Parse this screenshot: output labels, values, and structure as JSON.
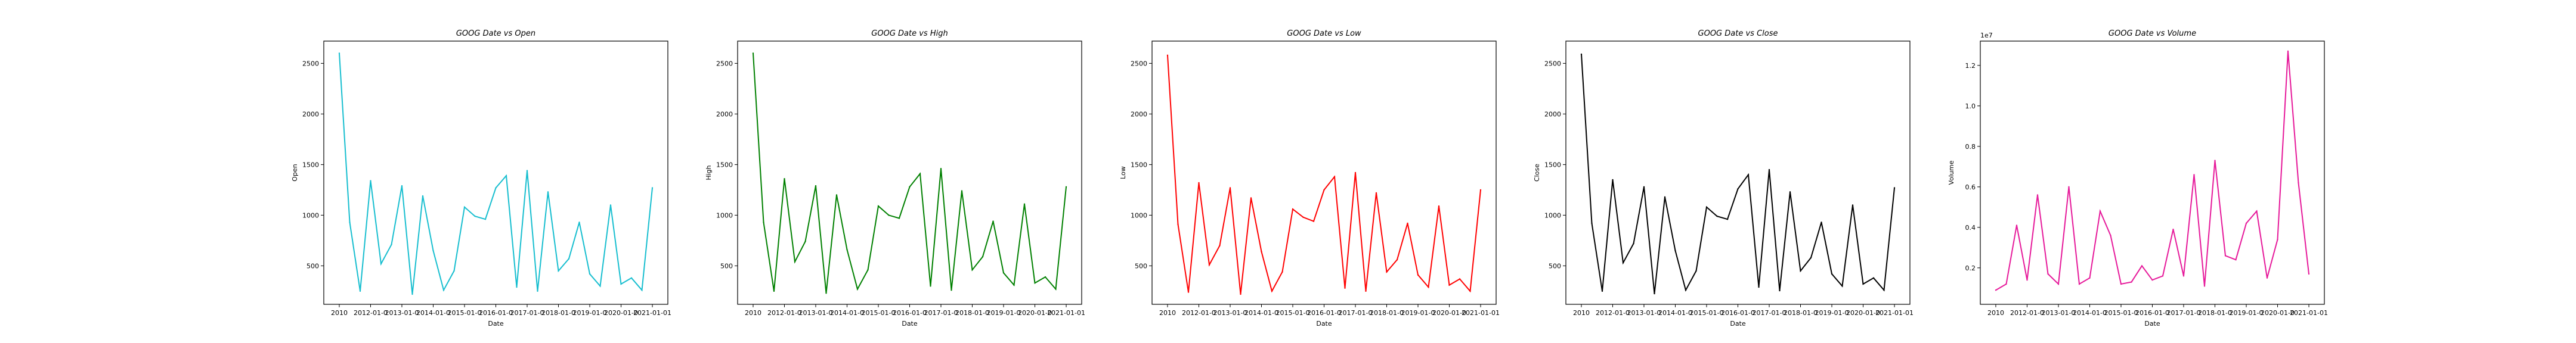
{
  "chart_data": [
    {
      "type": "line",
      "title": "GOOG Date vs Open",
      "xlabel": "Date",
      "ylabel": "Open",
      "color": "#17becf",
      "x_tick_labels": [
        "2010",
        "2012-01-0",
        "2013-01-0",
        "2014-01-0",
        "2015-01-0",
        "2016-01-0",
        "2017-01-0",
        "2018-01-0",
        "2019-01-0",
        "2020-01-0",
        "2021-01-01"
      ],
      "y_ticks": [
        "500",
        "1000",
        "1500",
        "2000",
        "2500"
      ],
      "ylim": [
        120,
        2720
      ],
      "values": [
        2600,
        930,
        250,
        1340,
        520,
        710,
        1290,
        220,
        1190,
        650,
        260,
        450,
        1080,
        990,
        960,
        1270,
        1390,
        290,
        1440,
        250,
        1230,
        450,
        570,
        930,
        420,
        300,
        1100,
        320,
        380,
        260,
        1270
      ]
    },
    {
      "type": "line",
      "title": "GOOG Date vs High",
      "xlabel": "Date",
      "ylabel": "High",
      "color": "#008000",
      "x_tick_labels": [
        "2010",
        "2012-01-0",
        "2013-01-0",
        "2014-01-0",
        "2015-01-0",
        "2016-01-0",
        "2017-01-0",
        "2018-01-0",
        "2019-01-0",
        "2020-01-0",
        "2021-01-01"
      ],
      "y_ticks": [
        "500",
        "1000",
        "1500",
        "2000",
        "2500"
      ],
      "ylim": [
        120,
        2720
      ],
      "values": [
        2600,
        930,
        250,
        1360,
        540,
        740,
        1290,
        230,
        1200,
        660,
        270,
        460,
        1090,
        1000,
        970,
        1280,
        1410,
        300,
        1460,
        260,
        1240,
        460,
        590,
        940,
        430,
        310,
        1110,
        330,
        390,
        270,
        1280
      ]
    },
    {
      "type": "line",
      "title": "GOOG Date vs Low",
      "xlabel": "Date",
      "ylabel": "Low",
      "color": "#ff0000",
      "x_tick_labels": [
        "2010",
        "2012-01-0",
        "2013-01-0",
        "2014-01-0",
        "2015-01-0",
        "2016-01-0",
        "2017-01-0",
        "2018-01-0",
        "2019-01-0",
        "2020-01-0",
        "2021-01-01"
      ],
      "y_ticks": [
        "500",
        "1000",
        "1500",
        "2000",
        "2500"
      ],
      "ylim": [
        120,
        2720
      ],
      "values": [
        2580,
        910,
        240,
        1320,
        510,
        700,
        1270,
        220,
        1170,
        640,
        250,
        440,
        1060,
        980,
        940,
        1250,
        1380,
        280,
        1420,
        250,
        1220,
        440,
        560,
        920,
        410,
        290,
        1090,
        310,
        370,
        250,
        1250
      ]
    },
    {
      "type": "line",
      "title": "GOOG Date vs Close",
      "xlabel": "Date",
      "ylabel": "Close",
      "color": "#000000",
      "x_tick_labels": [
        "2010",
        "2012-01-0",
        "2013-01-0",
        "2014-01-0",
        "2015-01-0",
        "2016-01-0",
        "2017-01-0",
        "2018-01-0",
        "2019-01-0",
        "2020-01-0",
        "2021-01-01"
      ],
      "y_ticks": [
        "500",
        "1000",
        "1500",
        "2000",
        "2500"
      ],
      "ylim": [
        120,
        2720
      ],
      "values": [
        2590,
        920,
        250,
        1350,
        530,
        720,
        1280,
        225,
        1180,
        650,
        260,
        450,
        1080,
        990,
        960,
        1260,
        1400,
        290,
        1450,
        255,
        1230,
        450,
        580,
        930,
        420,
        300,
        1100,
        320,
        380,
        260,
        1270
      ]
    },
    {
      "type": "line",
      "title": "GOOG Date vs Volume",
      "xlabel": "Date",
      "ylabel": "Volume",
      "color": "#e6199a",
      "offset_label": "1e7",
      "x_tick_labels": [
        "2010",
        "2012-01-0",
        "2013-01-0",
        "2014-01-0",
        "2015-01-0",
        "2016-01-0",
        "2017-01-0",
        "2018-01-0",
        "2019-01-0",
        "2020-01-0",
        "2021-01-01"
      ],
      "y_ticks": [
        "0.2",
        "0.4",
        "0.6",
        "0.8",
        "1.0",
        "1.2"
      ],
      "ylim": [
        0.02,
        1.32
      ],
      "values": [
        0.09,
        0.12,
        0.41,
        0.14,
        0.56,
        0.17,
        0.12,
        0.6,
        0.12,
        0.15,
        0.48,
        0.36,
        0.12,
        0.13,
        0.21,
        0.14,
        0.16,
        0.39,
        0.16,
        0.66,
        0.11,
        0.73,
        0.26,
        0.24,
        0.42,
        0.48,
        0.15,
        0.34,
        1.27,
        0.62,
        0.17
      ]
    }
  ]
}
